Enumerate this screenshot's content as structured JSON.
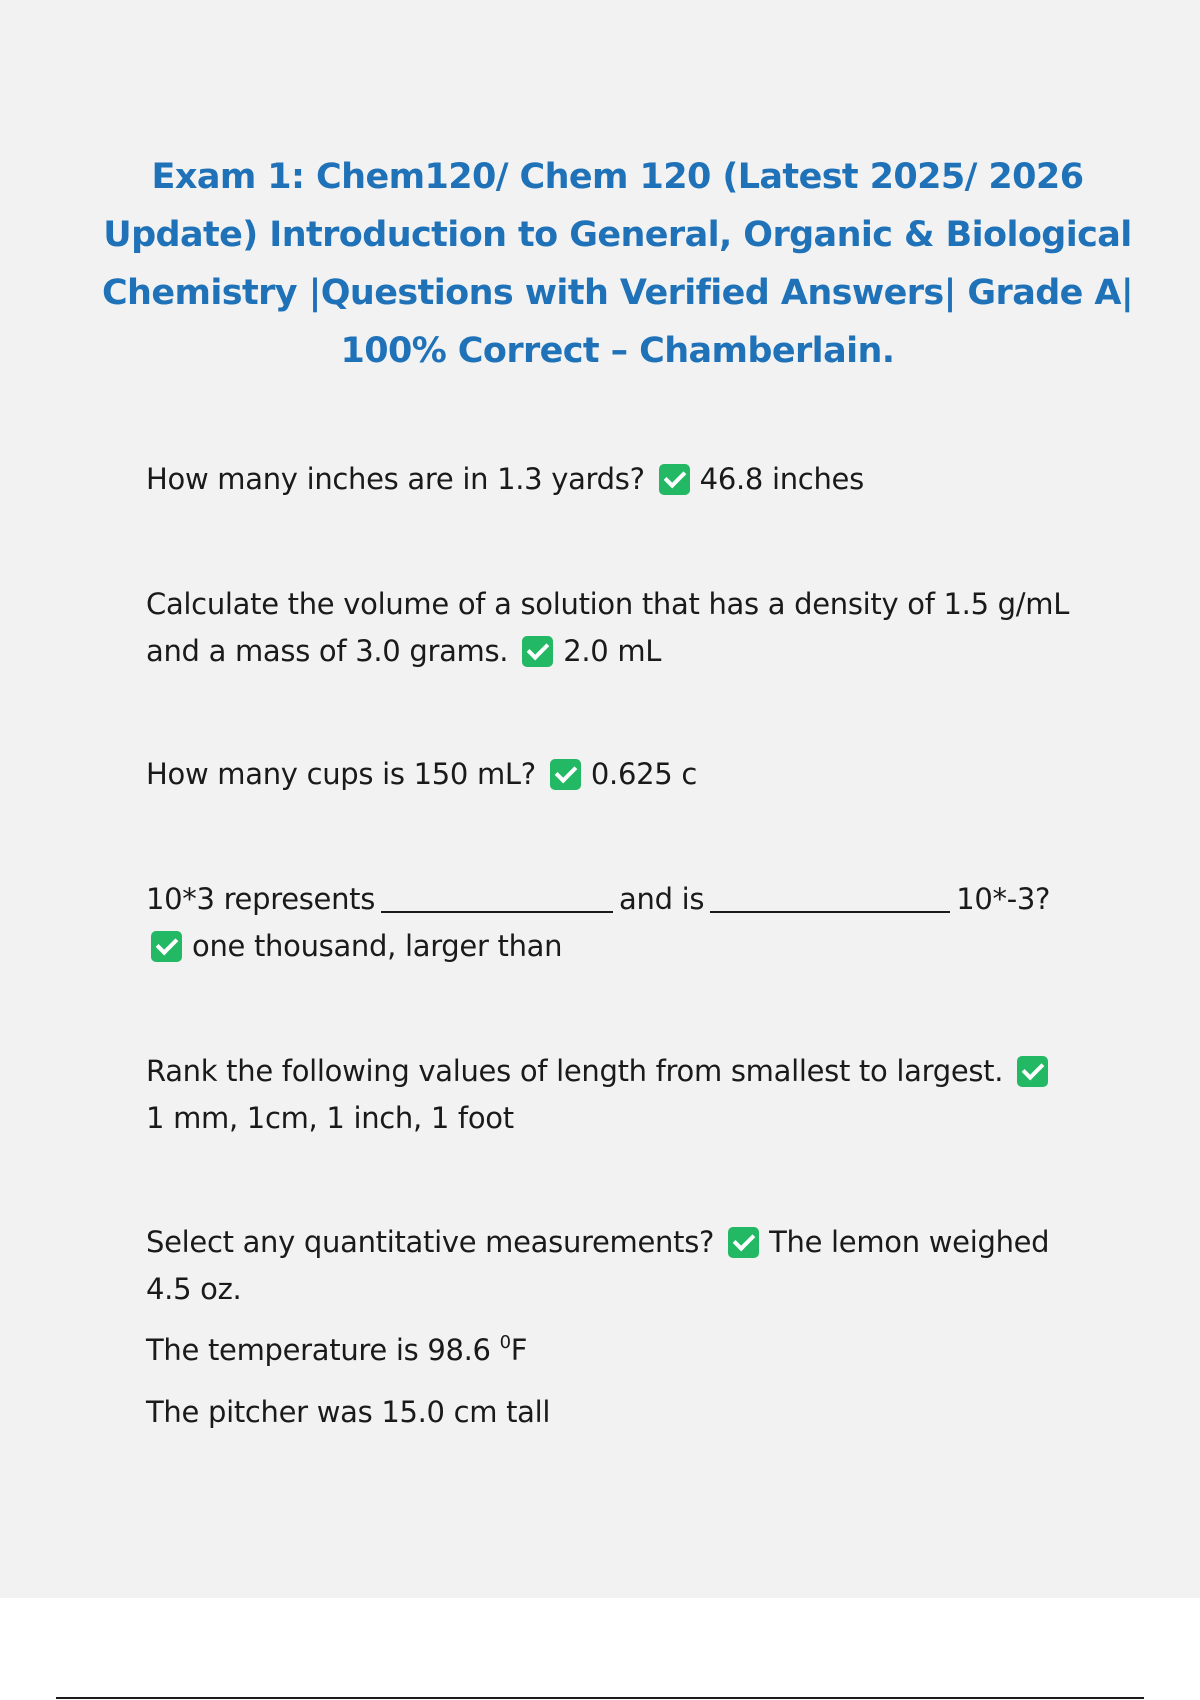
{
  "title": "Exam 1: Chem120/ Chem 120 (Latest 2025/ 2026 Update) Introduction to General, Organic & Biological Chemistry |Questions with Verified Answers| Grade A| 100% Correct – Chamberlain.",
  "questions": [
    {
      "question": "How many inches are in 1.3 yards?",
      "answer": "46.8 inches"
    },
    {
      "question": "Calculate the volume of a solution that has a density of 1.5 g/mL and a mass of 3.0 grams.",
      "answer": "2.0 mL"
    },
    {
      "question": "How many cups is 150 mL?",
      "answer": "0.625 c"
    },
    {
      "question_part1": "10*3 represents",
      "question_part2": "and is",
      "question_part3": "10*-3?",
      "answer": "one thousand, larger than"
    },
    {
      "question": "Rank the following values of length from smallest to largest.",
      "answer": "1 mm, 1cm, 1 inch, 1 foot"
    },
    {
      "question": "Select any quantitative measurements?",
      "answer": "The lemon weighed 4.5 oz.",
      "extra_line1_pre": "The temperature is 98.6",
      "extra_line1_sup": "0",
      "extra_line1_post": "F",
      "extra_line2": "The pitcher was 15.0 cm tall"
    }
  ],
  "icons": {
    "answer_marker": "check-mark-box-icon",
    "answer_marker_color": "#23b864"
  },
  "colors": {
    "title": "#1f72b8",
    "page_background": "#f2f2f2"
  }
}
